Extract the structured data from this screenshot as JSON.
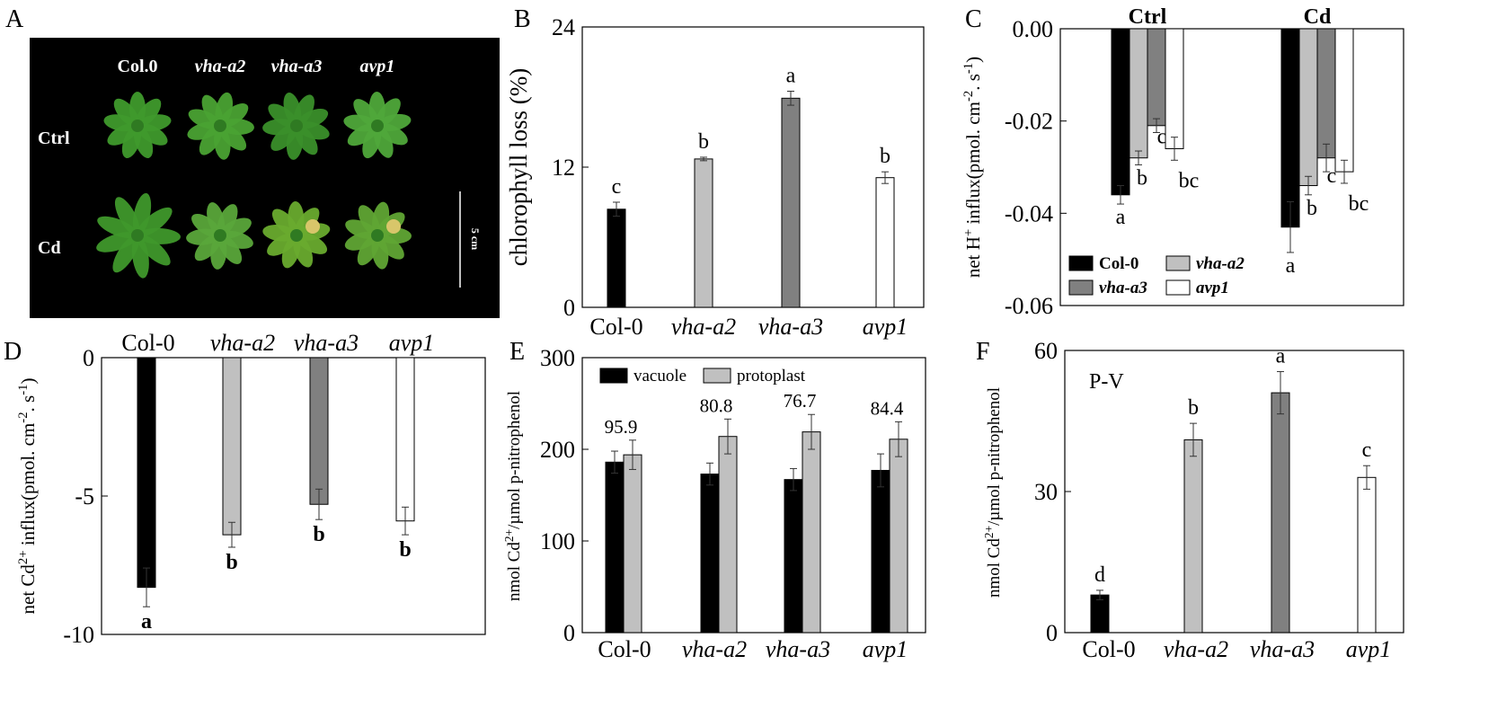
{
  "panels": {
    "A": {
      "letter": "A",
      "genotypes": [
        "Col.0",
        "vha-a2",
        "vha-a3",
        "avp1"
      ],
      "rows": [
        "Ctrl",
        "Cd"
      ],
      "scale_label": "5 cm"
    }
  },
  "chart_data": [
    {
      "panel": "B",
      "type": "bar",
      "categories": [
        "Col-0",
        "vha-a2",
        "vha-a3",
        "avp1"
      ],
      "values": [
        8.4,
        12.7,
        17.9,
        11.1
      ],
      "errors": [
        0.6,
        0.15,
        0.6,
        0.5
      ],
      "letters": [
        "c",
        "b",
        "a",
        "b"
      ],
      "ylabel": "chlorophyll loss (%)",
      "ylim": [
        0,
        24
      ],
      "yticks": [
        0,
        12,
        24
      ],
      "colors": [
        "#000000",
        "#c0c0c0",
        "#808080",
        "#ffffff"
      ]
    },
    {
      "panel": "C",
      "type": "bar",
      "groups": [
        "Ctrl",
        "Cd"
      ],
      "series": [
        {
          "name": "Col-0",
          "values": [
            -0.036,
            -0.043
          ],
          "errors": [
            0.002,
            0.0055
          ],
          "letters": [
            "a",
            "a"
          ],
          "color": "#000000"
        },
        {
          "name": "vha-a2",
          "values": [
            -0.028,
            -0.034
          ],
          "errors": [
            0.0015,
            0.002
          ],
          "letters": [
            "b",
            "b"
          ],
          "color": "#c0c0c0"
        },
        {
          "name": "vha-a3",
          "values": [
            -0.021,
            -0.028
          ],
          "errors": [
            0.0015,
            0.003
          ],
          "letters": [
            "c",
            "c"
          ],
          "color": "#808080"
        },
        {
          "name": "avp1",
          "values": [
            -0.026,
            -0.031
          ],
          "errors": [
            0.0025,
            0.0025
          ],
          "letters": [
            "bc",
            "bc"
          ],
          "color": "#ffffff"
        }
      ],
      "ylabel": "net H+ influx(pmol. cm-2. s-1)",
      "ylim": [
        -0.06,
        0
      ],
      "yticks": [
        "0.00",
        "-0.02",
        "-0.04",
        "-0.06"
      ],
      "legend": "bottom-left"
    },
    {
      "panel": "D",
      "type": "bar",
      "categories": [
        "Col-0",
        "vha-a2",
        "vha-a3",
        "avp1"
      ],
      "values": [
        -8.3,
        -6.4,
        -5.3,
        -5.9
      ],
      "errors": [
        0.7,
        0.45,
        0.55,
        0.5
      ],
      "letters": [
        "a",
        "b",
        "b",
        "b"
      ],
      "ylabel": "net Cd2+ influx(pmol. cm-2. s-1)",
      "ylim": [
        -10,
        0
      ],
      "yticks": [
        "0",
        "-5",
        "-10"
      ],
      "colors": [
        "#000000",
        "#c0c0c0",
        "#808080",
        "#ffffff"
      ]
    },
    {
      "panel": "E",
      "type": "bar",
      "categories": [
        "Col-0",
        "vha-a2",
        "vha-a3",
        "avp1"
      ],
      "series": [
        {
          "name": "vacuole",
          "values": [
            186,
            173,
            167,
            177
          ],
          "errors": [
            12,
            12,
            12,
            18
          ],
          "color": "#000000"
        },
        {
          "name": "protoplast",
          "values": [
            194,
            214,
            219,
            211
          ],
          "errors": [
            16,
            19,
            19,
            19
          ],
          "color": "#c0c0c0"
        }
      ],
      "annotations": [
        "95.9",
        "80.8",
        "76.7",
        "84.4"
      ],
      "ylabel": "nmol Cd2+/µmol p-nitrophenol",
      "ylim": [
        0,
        300
      ],
      "yticks": [
        "0",
        "100",
        "200",
        "300"
      ],
      "legend": "top"
    },
    {
      "panel": "F",
      "type": "bar",
      "title": "P-V",
      "categories": [
        "Col-0",
        "vha-a2",
        "vha-a3",
        "avp1"
      ],
      "values": [
        8,
        41,
        51,
        33
      ],
      "errors": [
        1,
        3.5,
        4.5,
        2.5
      ],
      "letters": [
        "d",
        "b",
        "a",
        "c"
      ],
      "ylabel": "nmol Cd2+/µmol p-nitrophenol",
      "ylim": [
        0,
        60
      ],
      "yticks": [
        "0",
        "30",
        "60"
      ],
      "colors": [
        "#000000",
        "#c0c0c0",
        "#808080",
        "#ffffff"
      ]
    }
  ]
}
